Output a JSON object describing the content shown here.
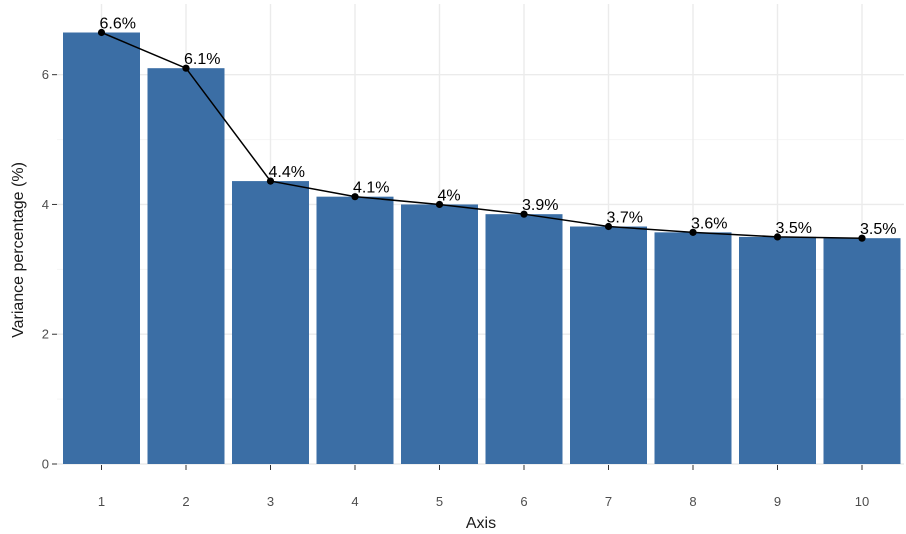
{
  "chart_data": {
    "type": "bar",
    "title": "",
    "xlabel": "Axis",
    "ylabel": "Variance percentage (%)",
    "categories": [
      "1",
      "2",
      "3",
      "4",
      "5",
      "6",
      "7",
      "8",
      "9",
      "10"
    ],
    "values": [
      6.65,
      6.1,
      4.36,
      4.12,
      4.0,
      3.85,
      3.66,
      3.57,
      3.5,
      3.48
    ],
    "data_labels": [
      "6.6%",
      "6.1%",
      "4.4%",
      "4.1%",
      "4%",
      "3.9%",
      "3.7%",
      "3.6%",
      "3.5%",
      "3.5%"
    ],
    "overlay": "line-with-points",
    "ylim": [
      0,
      6.7
    ],
    "yticks": [
      0,
      2,
      4,
      6
    ],
    "ytick_labels": [
      "0",
      "2",
      "4",
      "6"
    ],
    "grid": true,
    "legend": "none",
    "colors": {
      "bar": "#3b6ea5",
      "line": "#000000",
      "panel_background": "#ffffff",
      "grid_major": "#ebebeb",
      "grid_minor": "#f5f5f5"
    }
  }
}
